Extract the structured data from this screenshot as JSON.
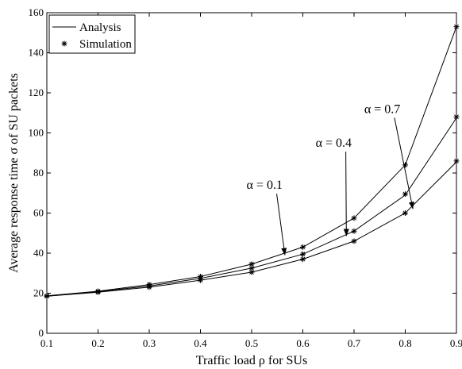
{
  "chart_data": {
    "type": "line",
    "xlabel": "Traffic load ρ for SUs",
    "ylabel": "Average response time σ of SU packets",
    "xlim": [
      0.1,
      0.9
    ],
    "ylim": [
      0,
      160
    ],
    "xticks": [
      0.1,
      0.2,
      0.3,
      0.4,
      0.5,
      0.6,
      0.7,
      0.8,
      0.9
    ],
    "xtick_labels": [
      "0.1",
      "0.2",
      "0.3",
      "0.4",
      "0.5",
      "0.6",
      "0.7",
      "0.8",
      "0.9"
    ],
    "yticks": [
      0,
      20,
      40,
      60,
      80,
      100,
      120,
      140,
      160
    ],
    "ytick_labels": [
      "0",
      "20",
      "40",
      "60",
      "80",
      "100",
      "120",
      "140",
      "160"
    ],
    "grid": false,
    "legend": {
      "placement": "top-left",
      "entries": [
        {
          "label": "Analysis",
          "marker": "line"
        },
        {
          "label": "Simulation",
          "marker": "asterisk"
        }
      ]
    },
    "x": [
      0.1,
      0.2,
      0.3,
      0.4,
      0.5,
      0.6,
      0.7,
      0.8,
      0.9
    ],
    "series": [
      {
        "curve": "α = 0.1",
        "analysis": [
          18.5,
          20.5,
          23.0,
          26.5,
          30.5,
          37.0,
          46.0,
          60.0,
          85.5
        ],
        "simulation": [
          18.5,
          20.5,
          23.0,
          26.5,
          30.5,
          37.0,
          46.0,
          60.0,
          86.0
        ]
      },
      {
        "curve": "α = 0.4",
        "analysis": [
          18.5,
          20.8,
          23.6,
          27.4,
          32.5,
          39.5,
          51.0,
          69.0,
          107.5
        ],
        "simulation": [
          18.5,
          20.8,
          23.6,
          27.4,
          32.5,
          39.5,
          51.0,
          69.5,
          108.0
        ]
      },
      {
        "curve": "α = 0.7",
        "analysis": [
          18.7,
          21.0,
          24.3,
          28.3,
          34.5,
          43.0,
          57.5,
          84.0,
          153.0
        ],
        "simulation": [
          18.7,
          21.0,
          24.3,
          28.3,
          34.5,
          43.0,
          57.5,
          84.0,
          153.0
        ]
      }
    ],
    "annotations": [
      {
        "text": "α = 0.1",
        "text_at": [
          0.49,
          72
        ],
        "arrow_to": [
          0.565,
          39
        ]
      },
      {
        "text": "α = 0.4",
        "text_at": [
          0.625,
          93
        ],
        "arrow_to": [
          0.685,
          48.5
        ]
      },
      {
        "text": "α = 0.7",
        "text_at": [
          0.72,
          110
        ],
        "arrow_to": [
          0.815,
          62
        ]
      }
    ]
  }
}
